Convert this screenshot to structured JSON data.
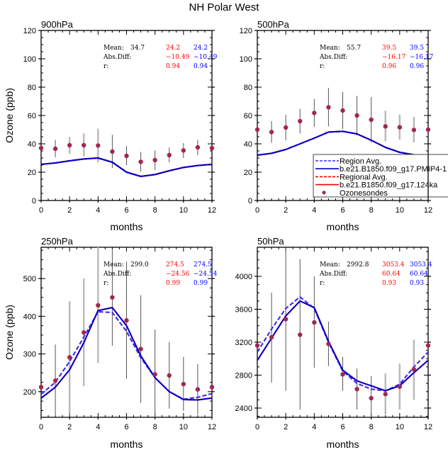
{
  "figure_title": "NH Polar West",
  "chart_data": [
    {
      "type": "line",
      "panel": "900hPa",
      "title": "900hPa",
      "xlabel": "months",
      "ylabel": "Ozone (ppb)",
      "xlim": [
        0,
        12
      ],
      "ylim": [
        0,
        120
      ],
      "xticks": [
        "0",
        "2",
        "4",
        "6",
        "8",
        "10",
        "12"
      ],
      "yticks": [
        "0",
        "20",
        "40",
        "60",
        "80",
        "100",
        "120"
      ],
      "x": [
        0,
        1,
        2,
        3,
        4,
        5,
        6,
        7,
        8,
        9,
        10,
        11,
        12
      ],
      "series": [
        {
          "name": "Region Avg.",
          "color": "#3333ff",
          "dash": true,
          "values": [
            25.5,
            26.5,
            28,
            29.3,
            30,
            27,
            20,
            17,
            18.3,
            21,
            23.3,
            24.7,
            25.5
          ]
        },
        {
          "name": "b.e21.B1850.f09_g17.PMIP4-1",
          "color": "#0000cc",
          "dash": false,
          "values": [
            25.5,
            26.5,
            28,
            29.3,
            30,
            27,
            20,
            17,
            18.3,
            21,
            23.3,
            24.7,
            25.5
          ]
        },
        {
          "name": "Regional Avg.",
          "color": "#ff0000",
          "dash": true,
          "values": [
            25.5,
            26.5,
            28,
            29.3,
            30,
            27,
            20,
            17,
            18.3,
            21,
            23.3,
            24.7,
            25.5
          ]
        },
        {
          "name": "b.e21.B1850.f09_g17.124ka",
          "color": "#ff0000",
          "dash": false,
          "values": [
            25.5,
            26.5,
            28,
            29.3,
            30,
            27,
            20,
            17,
            18.3,
            21,
            23.3,
            24.7,
            25.5
          ]
        }
      ],
      "obs": {
        "name": "Ozonesondes",
        "values": [
          37,
          36.5,
          39,
          39,
          38.8,
          34.5,
          31.5,
          27.3,
          28.5,
          32,
          35.3,
          37.5,
          37
        ],
        "err_low": [
          null,
          30.5,
          33,
          31,
          27,
          23,
          25,
          20.3,
          21.5,
          27,
          30,
          32,
          null
        ],
        "err_high": [
          null,
          42.8,
          44.8,
          47.3,
          50.7,
          46.3,
          38.5,
          34.3,
          35.3,
          37.5,
          40.5,
          42.8,
          null
        ],
        "err_gray": [
          false,
          false,
          true,
          true,
          true,
          false,
          false,
          false,
          false,
          false,
          false,
          false,
          false
        ]
      },
      "stats": {
        "mean_label": "Mean:",
        "absdiff_label": "Abs.Diff:",
        "r_label": "r:",
        "obs_mean": "34.7",
        "red": {
          "mean": "24.2",
          "absdiff": "−10.49",
          "r": "0.94"
        },
        "blue": {
          "mean": "24.2",
          "absdiff": "−10.49",
          "r": "0.94"
        }
      }
    },
    {
      "type": "line",
      "panel": "500hPa",
      "title": "500hPa",
      "xlabel": "months",
      "ylabel": "",
      "xlim": [
        0,
        12
      ],
      "ylim": [
        0,
        120
      ],
      "xticks": [
        "0",
        "2",
        "4",
        "6",
        "8",
        "10",
        "12"
      ],
      "yticks": [
        "0",
        "20",
        "40",
        "60",
        "80",
        "100",
        "120"
      ],
      "x": [
        0,
        1,
        2,
        3,
        4,
        5,
        6,
        7,
        8,
        9,
        10,
        11,
        12
      ],
      "series": [
        {
          "name": "Region Avg.",
          "color": "#3333ff",
          "dash": true,
          "values": [
            32,
            33.3,
            36,
            40,
            44,
            48.3,
            48.8,
            47,
            42.5,
            37.5,
            34,
            32.3,
            32
          ]
        },
        {
          "name": "b.e21.B1850.f09_g17.PMIP4-1",
          "color": "#0000cc",
          "dash": false,
          "values": [
            32,
            33.3,
            36,
            40,
            44,
            48.3,
            48.8,
            47,
            42.5,
            37.5,
            34,
            32.3,
            32
          ]
        },
        {
          "name": "Regional Avg.",
          "color": "#ff0000",
          "dash": true,
          "values": [
            32,
            33.3,
            36,
            40,
            44,
            48.3,
            48.8,
            47,
            42.5,
            37.5,
            34,
            32.3,
            32
          ]
        },
        {
          "name": "b.e21.B1850.f09_g17.124ka",
          "color": "#ff0000",
          "dash": false,
          "values": [
            32,
            33.3,
            36,
            40,
            44,
            48.3,
            48.8,
            47,
            42.5,
            37.5,
            34,
            32.3,
            32
          ]
        }
      ],
      "obs": {
        "name": "Ozonesondes",
        "values": [
          50,
          48.3,
          51.5,
          56,
          61.8,
          65.8,
          63.5,
          60,
          57,
          52.3,
          51.7,
          49.8,
          50
        ],
        "err_low": [
          null,
          40.7,
          42.5,
          47.3,
          52,
          52.3,
          50.5,
          46,
          41,
          41.7,
          43,
          41,
          null
        ],
        "err_high": [
          null,
          56,
          60.5,
          64.7,
          71.7,
          79.5,
          76.5,
          73.8,
          73,
          63.3,
          60.5,
          59,
          null
        ],
        "err_gray": [
          false,
          false,
          false,
          false,
          false,
          false,
          false,
          false,
          false,
          true,
          true,
          true,
          false
        ]
      },
      "stats": {
        "mean_label": "Mean:",
        "absdiff_label": "Abs.Diff:",
        "r_label": "r:",
        "obs_mean": "55.7",
        "red": {
          "mean": "39.5",
          "absdiff": "−16.17",
          "r": "0.96"
        },
        "blue": {
          "mean": "39.5",
          "absdiff": "−16.17",
          "r": "0.96"
        }
      },
      "legend": {
        "placement": "bottom-right",
        "entries": [
          {
            "label": "Region Avg.",
            "color": "#3333ff",
            "style": "dashed"
          },
          {
            "label": "b.e21.B1850.f09_g17.PMIP4-1",
            "color": "#0000cc",
            "style": "solid"
          },
          {
            "label": "Regional Avg.",
            "color": "#ff0000",
            "style": "dashed"
          },
          {
            "label": "b.e21.B1850.f09_g17.124ka",
            "color": "#ff0000",
            "style": "solid"
          },
          {
            "label": "Ozonesondes",
            "color": "#a0294f",
            "style": "marker"
          }
        ]
      }
    },
    {
      "type": "line",
      "panel": "250hPa",
      "title": "250hPa",
      "xlabel": "months",
      "ylabel": "Ozone (ppb)",
      "xlim": [
        0,
        12
      ],
      "ylim": [
        132,
        583
      ],
      "xticks": [
        "0",
        "2",
        "4",
        "6",
        "8",
        "10",
        "12"
      ],
      "yticks": [
        "200",
        "300",
        "400",
        "500"
      ],
      "ytick_values": [
        200,
        300,
        400,
        500
      ],
      "x": [
        0,
        1,
        2,
        3,
        4,
        5,
        6,
        7,
        8,
        9,
        10,
        11,
        12
      ],
      "series": [
        {
          "name": "Region Avg.",
          "color": "#3333ff",
          "dash": true,
          "values": [
            193,
            225,
            280,
            345,
            412,
            410,
            360,
            290,
            237,
            200,
            180,
            185,
            195
          ]
        },
        {
          "name": "b.e21.B1850.f09_g17.PMIP4-1",
          "color": "#0000cc",
          "dash": false,
          "values": [
            183,
            212,
            258,
            330,
            415,
            423,
            375,
            295,
            237,
            200,
            179,
            178,
            183
          ]
        },
        {
          "name": "Regional Avg.",
          "color": "#ff0000",
          "dash": true,
          "values": [
            193,
            225,
            280,
            345,
            412,
            410,
            360,
            290,
            237,
            200,
            180,
            185,
            195
          ]
        },
        {
          "name": "b.e21.B1850.f09_g17.124ka",
          "color": "#ff0000",
          "dash": false,
          "values": [
            183,
            212,
            258,
            330,
            415,
            423,
            375,
            295,
            237,
            200,
            179,
            178,
            183
          ]
        }
      ],
      "obs": {
        "name": "Ozonesondes",
        "values": [
          212,
          229,
          291,
          357,
          429,
          450,
          389,
          313,
          246,
          243,
          220,
          206,
          212
        ],
        "err_low": [
          null,
          134,
          142,
          215,
          276,
          322,
          234,
          170,
          132,
          155,
          149,
          140,
          null
        ],
        "err_high": [
          null,
          325,
          440,
          500,
          583,
          578,
          545,
          456,
          365,
          332,
          292,
          273,
          null
        ],
        "err_gray": [
          false,
          false,
          true,
          true,
          true,
          false,
          false,
          false,
          false,
          false,
          false,
          false,
          false
        ]
      },
      "stats": {
        "mean_label": "Mean:",
        "absdiff_label": "Abs.Diff:",
        "r_label": "r:",
        "obs_mean": "299.0",
        "red": {
          "mean": "274.5",
          "absdiff": "−24.56",
          "r": "0.99"
        },
        "blue": {
          "mean": "274.5",
          "absdiff": "−24.54",
          "r": "0.99"
        }
      }
    },
    {
      "type": "line",
      "panel": "50hPa",
      "title": "50hPa",
      "xlabel": "months",
      "ylabel": "",
      "xlim": [
        0,
        12
      ],
      "ylim": [
        2288,
        4353
      ],
      "xticks": [
        "0",
        "2",
        "4",
        "6",
        "8",
        "10",
        "12"
      ],
      "yticks": [
        "2400",
        "2800",
        "3200",
        "3600",
        "4000"
      ],
      "ytick_values": [
        2400,
        2800,
        3200,
        3600,
        4000
      ],
      "x": [
        0,
        1,
        2,
        3,
        4,
        5,
        6,
        7,
        8,
        9,
        10,
        11,
        12
      ],
      "series": [
        {
          "name": "Region Avg.",
          "color": "#3333ff",
          "dash": true,
          "values": [
            3080,
            3360,
            3610,
            3750,
            3610,
            3200,
            2850,
            2700,
            2630,
            2610,
            2690,
            2900,
            3080
          ]
        },
        {
          "name": "b.e21.B1850.f09_g17.PMIP4-1",
          "color": "#0000cc",
          "dash": false,
          "values": [
            2980,
            3250,
            3520,
            3700,
            3620,
            3210,
            2860,
            2730,
            2670,
            2610,
            2670,
            2830,
            2980
          ]
        },
        {
          "name": "Regional Avg.",
          "color": "#ff0000",
          "dash": true,
          "values": [
            3080,
            3360,
            3610,
            3750,
            3610,
            3200,
            2850,
            2700,
            2630,
            2610,
            2690,
            2900,
            3080
          ]
        },
        {
          "name": "b.e21.B1850.f09_g17.124ka",
          "color": "#ff0000",
          "dash": false,
          "values": [
            2980,
            3250,
            3520,
            3700,
            3620,
            3210,
            2860,
            2730,
            2670,
            2610,
            2670,
            2830,
            2980
          ]
        }
      ],
      "obs": {
        "name": "Ozonesondes",
        "values": [
          3160,
          3260,
          3480,
          3290,
          3440,
          3180,
          2810,
          2630,
          2520,
          2570,
          2660,
          2870,
          3160
        ],
        "err_low": [
          null,
          2710,
          2610,
          2380,
          2890,
          2910,
          2610,
          2380,
          2288,
          2320,
          2380,
          2500,
          null
        ],
        "err_high": [
          null,
          3800,
          4353,
          4210,
          4000,
          3450,
          3020,
          2880,
          2790,
          2820,
          2940,
          3230,
          null
        ],
        "err_gray": [
          false,
          false,
          false,
          false,
          false,
          false,
          false,
          false,
          false,
          true,
          true,
          true,
          false
        ]
      },
      "stats": {
        "mean_label": "Mean:",
        "absdiff_label": "Abs.Diff:",
        "r_label": "r:",
        "obs_mean": "2992.8",
        "red": {
          "mean": "3053.4",
          "absdiff": "60.64",
          "r": "0.93"
        },
        "blue": {
          "mean": "3053.4",
          "absdiff": "60.64",
          "r": "0.93"
        }
      }
    }
  ],
  "colors": {
    "red": "#ff0000",
    "blue": "#0000ff",
    "obs_marker": "#a0294f",
    "err_dark": "#555555",
    "err_gray": "#b8b8b8"
  }
}
